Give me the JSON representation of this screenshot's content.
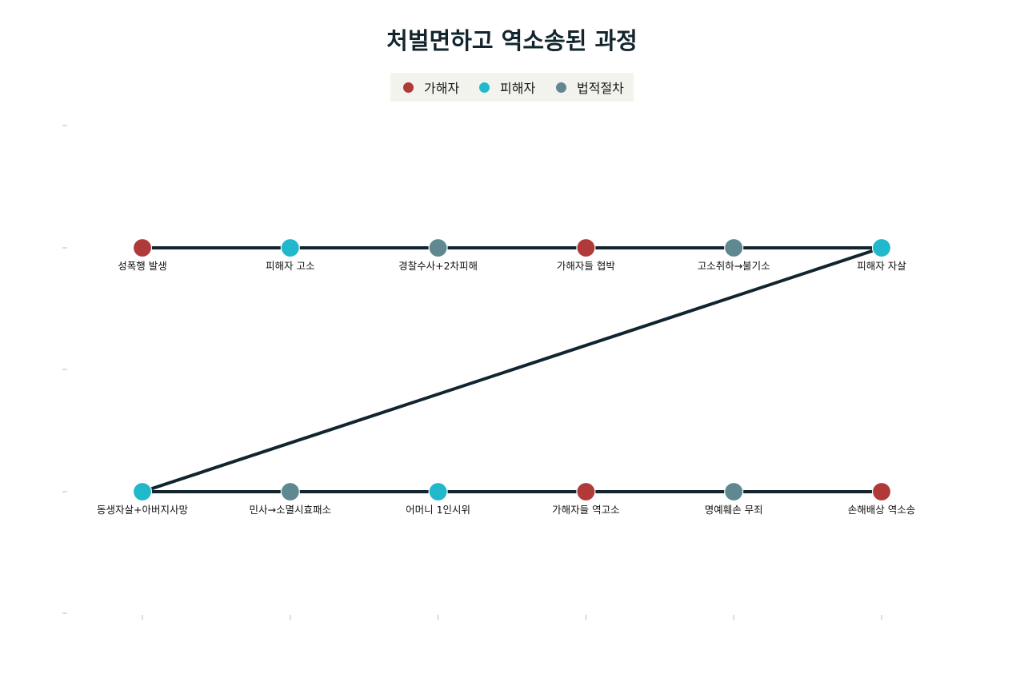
{
  "title": "처벌면하고 역소송된 과정",
  "legend": [
    {
      "key": "perpetrator",
      "label": "가해자",
      "color": "#b03a3a"
    },
    {
      "key": "victim",
      "label": "피해자",
      "color": "#22b8cc"
    },
    {
      "key": "legal",
      "label": "법적절차",
      "color": "#5f8890"
    }
  ],
  "colors": {
    "line": "#12252e",
    "axis_tick": "#bbbbbb"
  },
  "steps": [
    {
      "label": "성폭행 발생",
      "category": "perpetrator"
    },
    {
      "label": "피해자 고소",
      "category": "victim"
    },
    {
      "label": "경찰수사+2차피해",
      "category": "legal"
    },
    {
      "label": "가해자들 협박",
      "category": "perpetrator"
    },
    {
      "label": "고소취하→불기소",
      "category": "legal"
    },
    {
      "label": "피해자 자살",
      "category": "victim"
    },
    {
      "label": "동생자살+아버지사망",
      "category": "victim"
    },
    {
      "label": "민사→소멸시효패소",
      "category": "legal"
    },
    {
      "label": "어머니 1인시위",
      "category": "victim"
    },
    {
      "label": "가해자들 역고소",
      "category": "perpetrator"
    },
    {
      "label": "명예훼손 무죄",
      "category": "legal"
    },
    {
      "label": "손해배상 역소송",
      "category": "perpetrator"
    }
  ]
}
